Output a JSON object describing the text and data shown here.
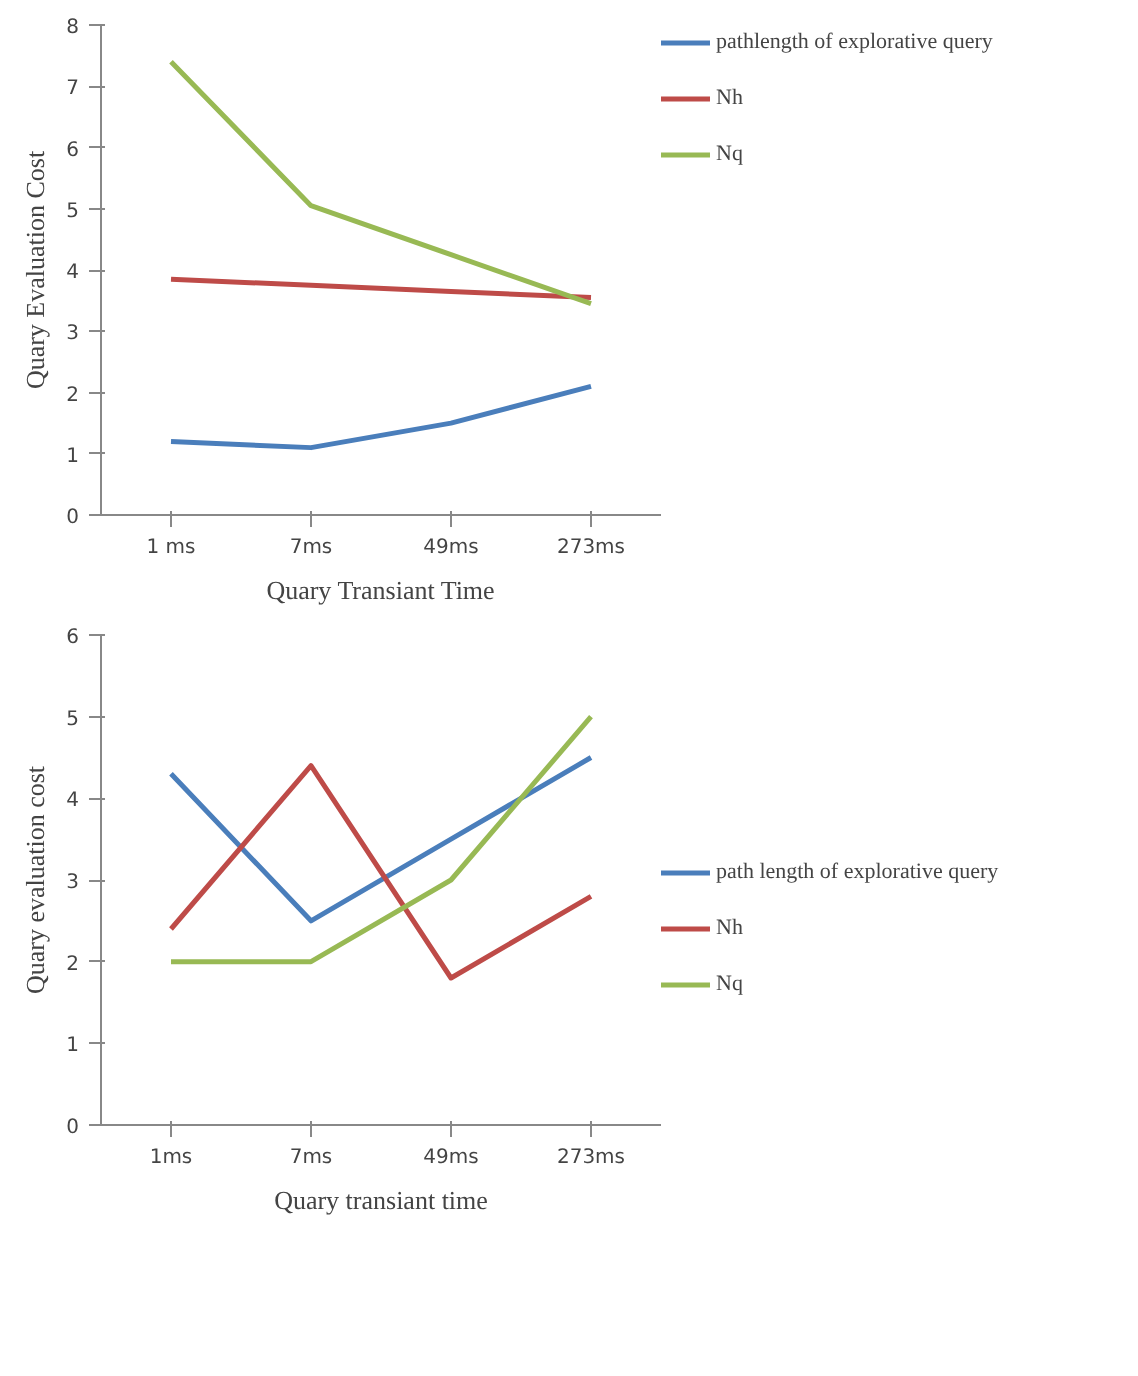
{
  "chart_data": [
    {
      "type": "line",
      "xlabel": "Quary Transiant Time",
      "ylabel": "Quary Evaluation Cost",
      "categories": [
        "1 ms",
        "7ms",
        "49ms",
        "273ms"
      ],
      "ylim": [
        0,
        8
      ],
      "yticks": [
        0,
        1,
        2,
        3,
        4,
        5,
        6,
        7,
        8
      ],
      "grid": false,
      "legend": "top right",
      "marker": "none",
      "line_style": "solid",
      "series": [
        {
          "name": "pathlength of explorative query",
          "color": "#4a7ebb",
          "values": [
            1.2,
            1.1,
            1.5,
            2.1
          ]
        },
        {
          "name": "Nh",
          "color": "#be4b48",
          "values": [
            3.85,
            3.75,
            3.65,
            3.55
          ]
        },
        {
          "name": "Nq",
          "color": "#98b954",
          "values": [
            7.4,
            5.05,
            4.25,
            3.45
          ]
        }
      ]
    },
    {
      "type": "line",
      "xlabel": "Quary transiant time",
      "ylabel": "Quary evaluation cost",
      "categories": [
        "1ms",
        "7ms",
        "49ms",
        "273ms"
      ],
      "ylim": [
        0,
        6
      ],
      "yticks": [
        0,
        1,
        2,
        3,
        4,
        5,
        6
      ],
      "grid": false,
      "legend": "right",
      "marker": "none",
      "line_style": "solid",
      "series": [
        {
          "name": "path length of explorative query",
          "color": "#4a7ebb",
          "values": [
            4.3,
            2.5,
            3.5,
            4.5
          ]
        },
        {
          "name": "Nh",
          "color": "#be4b48",
          "values": [
            2.4,
            4.4,
            1.8,
            2.8
          ]
        },
        {
          "name": "Nq",
          "color": "#98b954",
          "values": [
            2,
            2,
            3,
            5
          ]
        }
      ]
    }
  ]
}
